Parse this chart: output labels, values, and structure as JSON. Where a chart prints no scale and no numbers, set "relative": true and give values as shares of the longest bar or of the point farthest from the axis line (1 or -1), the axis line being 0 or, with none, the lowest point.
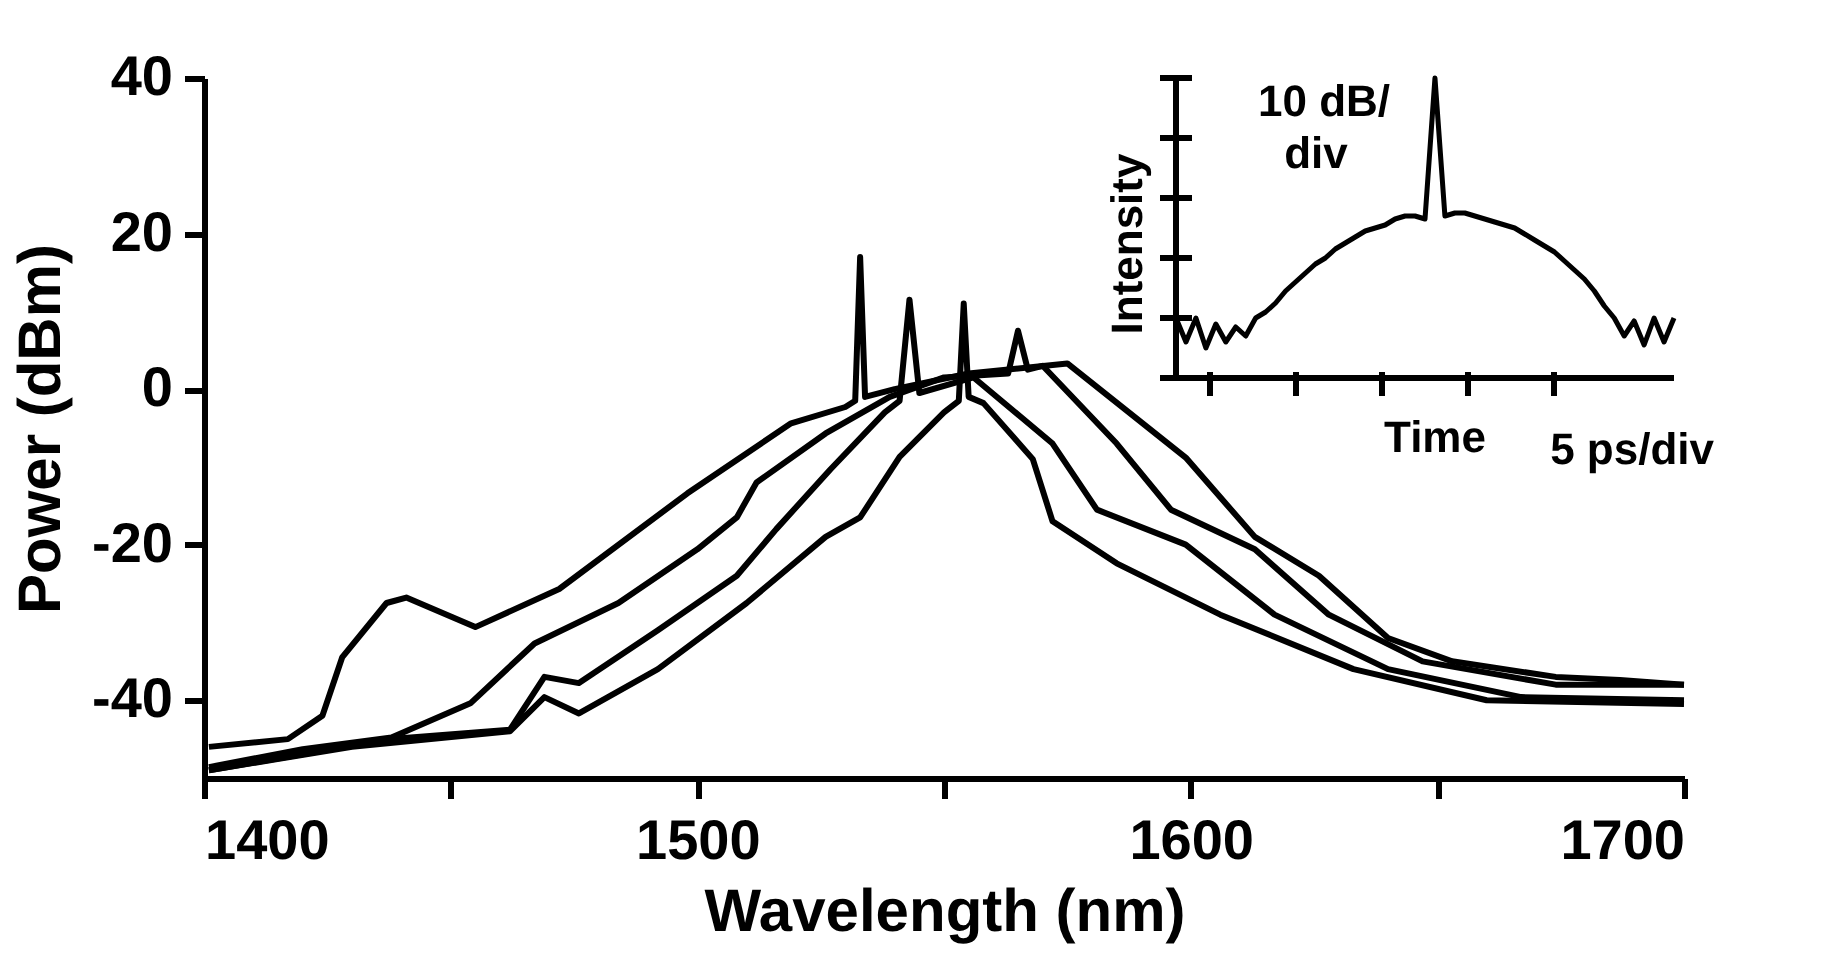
{
  "chart_data": [
    {
      "type": "line",
      "xlabel": "Wavelength (nm)",
      "ylabel": "Power (dBm)",
      "xlim": [
        1400,
        1700
      ],
      "ylim": [
        -50,
        40
      ],
      "xticks": [
        1400,
        {
          "value": 1450,
          "label": null
        },
        1500,
        {
          "value": 1550,
          "label": null
        },
        1600,
        {
          "value": 1650,
          "label": null
        },
        1700
      ],
      "yticks": [
        -40,
        -20,
        0,
        20,
        40
      ],
      "grid": false,
      "legend": false,
      "line_style": "solid",
      "series": [
        {
          "color": "#000000",
          "x": [
            1401,
            1417,
            1424,
            1428,
            1437,
            1441,
            1455,
            1472,
            1498,
            1519,
            1530,
            1532,
            1533,
            1534,
            1540,
            1555,
            1575,
            1599,
            1613,
            1626,
            1640,
            1653,
            1674,
            1687,
            1700
          ],
          "values": [
            -46,
            -45,
            -42,
            -34.5,
            -27.5,
            -26.8,
            -30.6,
            -25.7,
            -13.4,
            -4.4,
            -2.3,
            -1.5,
            17,
            -1,
            0,
            2,
            3.3,
            -8.8,
            -19,
            -24,
            -32,
            -35,
            -37,
            -37.4,
            -38
          ]
        },
        {
          "color": "#000000",
          "x": [
            1401,
            1420,
            1438,
            1454,
            1467,
            1484,
            1500,
            1508,
            1512,
            1526,
            1539,
            1550,
            1563,
            1565,
            1567,
            1570,
            1585,
            1596,
            1613,
            1628,
            1647,
            1674,
            1700
          ],
          "values": [
            -48.6,
            -46.3,
            -44.8,
            -40.4,
            -32.7,
            -27.5,
            -20.6,
            -16.5,
            -12,
            -5.7,
            -1,
            1.5,
            2,
            7.5,
            2.5,
            3,
            -7,
            -15.5,
            -20.6,
            -29,
            -35,
            -38,
            -38
          ]
        },
        {
          "color": "#000000",
          "x": [
            1401,
            1438,
            1462,
            1469,
            1476,
            1492,
            1508,
            1516,
            1527,
            1538,
            1541,
            1543,
            1545,
            1556,
            1572,
            1581,
            1599,
            1617,
            1640,
            1667,
            1700
          ],
          "values": [
            -49,
            -45,
            -43.8,
            -37,
            -37.8,
            -31,
            -24,
            -18,
            -10.3,
            -3,
            -1.5,
            11.5,
            -0.5,
            1.5,
            -7,
            -15.5,
            -20,
            -29,
            -36,
            -39.6,
            -40
          ]
        },
        {
          "color": "#000000",
          "x": [
            1401,
            1430,
            1462,
            1469,
            1476,
            1492,
            1510,
            1526,
            1533,
            1541,
            1550,
            1553,
            1554,
            1555,
            1558,
            1568,
            1572,
            1585,
            1606,
            1633,
            1660,
            1700
          ],
          "values": [
            -49,
            -46,
            -44,
            -39.6,
            -41.7,
            -36,
            -27.5,
            -19,
            -16.5,
            -8.7,
            -3,
            -1.5,
            11,
            -1,
            -1.8,
            -9,
            -17,
            -22.4,
            -29,
            -36,
            -40,
            -40.5
          ]
        }
      ]
    },
    {
      "type": "line",
      "relative": true,
      "xlabel": "Time",
      "ylabel": "Intensity",
      "annotations": [
        "10 dB/",
        "div",
        "5 ps/div"
      ],
      "color": "#000000",
      "categories": [
        null,
        null,
        null,
        null,
        null,
        null,
        null,
        null,
        null,
        null,
        null,
        null,
        null,
        null,
        null,
        null,
        null,
        null,
        null,
        null,
        null,
        null,
        null,
        null,
        null,
        null,
        null,
        null,
        null,
        null,
        null,
        null,
        null,
        null,
        null,
        null,
        null,
        null,
        null,
        null,
        null,
        null,
        null,
        null,
        null,
        null,
        null,
        null,
        null,
        null,
        null
      ],
      "values": [
        0.2,
        0.12,
        0.2,
        0.1,
        0.18,
        0.12,
        0.17,
        0.14,
        0.2,
        0.22,
        0.25,
        0.29,
        0.32,
        0.35,
        0.38,
        0.4,
        0.43,
        0.45,
        0.47,
        0.49,
        0.5,
        0.51,
        0.53,
        0.54,
        0.54,
        0.53,
        1.0,
        0.54,
        0.55,
        0.55,
        0.54,
        0.53,
        0.52,
        0.51,
        0.5,
        0.48,
        0.46,
        0.44,
        0.42,
        0.39,
        0.36,
        0.33,
        0.29,
        0.24,
        0.2,
        0.14,
        0.19,
        0.11,
        0.2,
        0.12,
        0.2
      ]
    }
  ]
}
